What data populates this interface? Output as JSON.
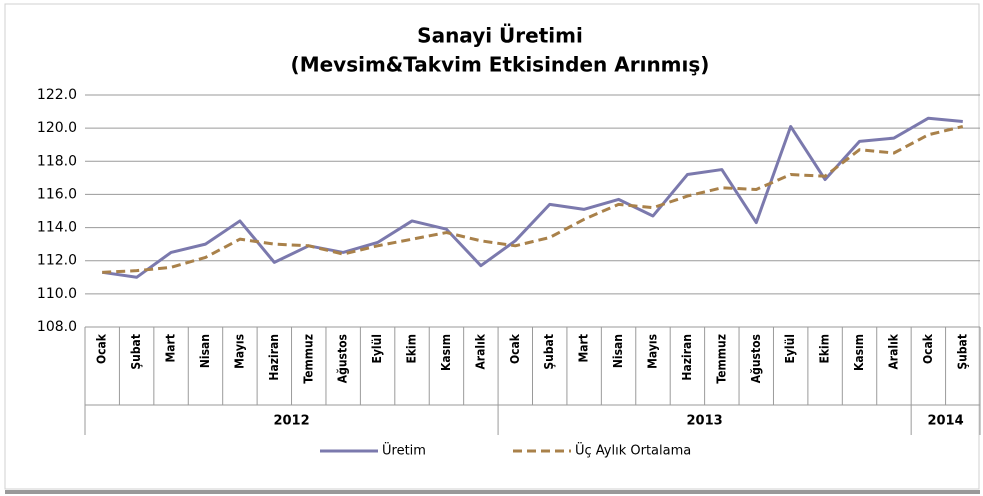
{
  "chart_data": {
    "type": "line",
    "title": "Sanayi Üretimi",
    "subtitle": "(Mevsim&Takvim Etkisinden Arınmış)",
    "groups": [
      {
        "label": "2012",
        "categories": [
          "Ocak",
          "Şubat",
          "Mart",
          "Nisan",
          "Mayıs",
          "Haziran",
          "Temmuz",
          "Ağustos",
          "Eylül",
          "Ekim",
          "Kasım",
          "Aralık"
        ]
      },
      {
        "label": "2013",
        "categories": [
          "Ocak",
          "Şubat",
          "Mart",
          "Nisan",
          "Mayıs",
          "Haziran",
          "Temmuz",
          "Ağustos",
          "Eylül",
          "Ekim",
          "Kasım",
          "Aralık"
        ]
      },
      {
        "label": "2014",
        "categories": [
          "Ocak",
          "Şubat"
        ]
      }
    ],
    "series": [
      {
        "name": "Üretim",
        "color": "#7b79ad",
        "dashed": false,
        "values": [
          111.3,
          111.0,
          112.5,
          113.0,
          114.4,
          111.9,
          112.9,
          112.5,
          113.1,
          114.4,
          113.9,
          111.7,
          113.2,
          115.4,
          115.1,
          115.7,
          114.7,
          117.2,
          117.5,
          114.3,
          120.1,
          116.9,
          119.2,
          119.4,
          120.6,
          120.4
        ]
      },
      {
        "name": "Üç Aylık Ortalama",
        "color": "#a9814a",
        "dashed": true,
        "values": [
          111.3,
          111.4,
          111.6,
          112.2,
          113.3,
          113.0,
          112.9,
          112.4,
          112.9,
          113.3,
          113.7,
          113.2,
          112.9,
          113.4,
          114.5,
          115.4,
          115.2,
          115.9,
          116.4,
          116.3,
          117.2,
          117.1,
          118.7,
          118.5,
          119.6,
          120.1
        ]
      }
    ],
    "ylim": [
      108,
      122
    ],
    "yticks": [
      {
        "value": 108,
        "label": "108.0"
      },
      {
        "value": 110,
        "label": "110.0"
      },
      {
        "value": 112,
        "label": "112.0"
      },
      {
        "value": 114,
        "label": "114.0"
      },
      {
        "value": 116,
        "label": "116.0"
      },
      {
        "value": 118,
        "label": "118.0"
      },
      {
        "value": 120,
        "label": "120.0"
      },
      {
        "value": 122,
        "label": "122.0"
      }
    ],
    "grid": true,
    "legend": "bottom"
  }
}
